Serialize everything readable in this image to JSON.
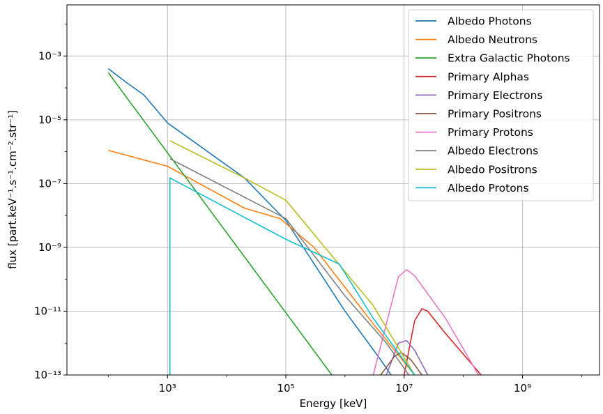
{
  "chart_data": {
    "type": "line",
    "xlabel": "Energy [keV]",
    "ylabel": "flux [part.keV⁻¹.s⁻¹.cm⁻².str⁻¹]",
    "xscale": "log",
    "yscale": "log",
    "xlim": [
      20,
      20000000000.0
    ],
    "ylim": [
      1e-13,
      0.04
    ],
    "grid": true,
    "legend_position": "upper right",
    "x_ticks": [
      {
        "value": 1000,
        "label": "10³"
      },
      {
        "value": 100000,
        "label": "10⁵"
      },
      {
        "value": 10000000,
        "label": "10⁷"
      },
      {
        "value": 1000000000,
        "label": "10⁹"
      }
    ],
    "y_ticks": [
      {
        "value": 0.001,
        "label": "10⁻³"
      },
      {
        "value": 1e-05,
        "label": "10⁻⁵"
      },
      {
        "value": 1e-07,
        "label": "10⁻⁷"
      },
      {
        "value": 1e-09,
        "label": "10⁻⁹"
      },
      {
        "value": 1e-11,
        "label": "10⁻¹¹"
      },
      {
        "value": 1e-13,
        "label": "10⁻¹³"
      }
    ],
    "series": [
      {
        "name": "Albedo Photons",
        "color": "#1f77b4",
        "points": [
          [
            100,
            0.0004
          ],
          [
            200,
            0.00015
          ],
          [
            400,
            6e-05
          ],
          [
            1000,
            8e-06
          ],
          [
            20000,
            1.5e-07
          ],
          [
            100000,
            7e-09
          ],
          [
            1000000,
            1e-11
          ],
          [
            4000000,
            3e-13
          ],
          [
            6000000,
            1e-13
          ]
        ]
      },
      {
        "name": "Albedo Neutrons",
        "color": "#ff7f0e",
        "points": [
          [
            100,
            1.1e-06
          ],
          [
            1000,
            3.5e-07
          ],
          [
            20000,
            1.7e-08
          ],
          [
            80000,
            8e-09
          ],
          [
            300000,
            1e-09
          ],
          [
            3000000,
            4e-12
          ],
          [
            15000000,
            1e-13
          ]
        ]
      },
      {
        "name": "Extra Galactic Photons",
        "color": "#2ca02c",
        "points": [
          [
            100,
            0.0003
          ],
          [
            600000,
            1e-13
          ]
        ]
      },
      {
        "name": "Primary Alphas",
        "color": "#d62728",
        "points": [
          [
            10000000,
            1e-13
          ],
          [
            15000000,
            5e-12
          ],
          [
            20000000,
            1.2e-11
          ],
          [
            25000000,
            1e-11
          ],
          [
            50000000,
            2e-12
          ],
          [
            200000000,
            1e-13
          ]
        ]
      },
      {
        "name": "Primary Electrons",
        "color": "#9467bd",
        "points": [
          [
            5000000,
            1e-13
          ],
          [
            8000000,
            1e-12
          ],
          [
            11000000,
            1.2e-12
          ],
          [
            15000000,
            6e-13
          ],
          [
            25000000,
            1e-13
          ]
        ]
      },
      {
        "name": "Primary Positrons",
        "color": "#8c564b",
        "points": [
          [
            4000000,
            1e-13
          ],
          [
            7000000,
            4e-13
          ],
          [
            9000000,
            5e-13
          ],
          [
            13000000,
            3e-13
          ],
          [
            20000000,
            1e-13
          ]
        ]
      },
      {
        "name": "Primary Protons",
        "color": "#e377c2",
        "points": [
          [
            3000000,
            1e-13
          ],
          [
            5000000,
            4e-12
          ],
          [
            8000000,
            1.2e-10
          ],
          [
            11000000,
            2e-10
          ],
          [
            15000000,
            1.3e-10
          ],
          [
            50000000,
            6e-12
          ],
          [
            180000000,
            1e-13
          ]
        ]
      },
      {
        "name": "Albedo Electrons",
        "color": "#7f7f7f",
        "points": [
          [
            1100,
            6e-07
          ],
          [
            100000,
            8e-09
          ],
          [
            1000000,
            3e-11
          ],
          [
            5000000,
            1e-12
          ],
          [
            12000000,
            1e-13
          ]
        ]
      },
      {
        "name": "Albedo Positrons",
        "color": "#bcbd22",
        "points": [
          [
            1100,
            2.2e-06
          ],
          [
            20000,
            1.5e-07
          ],
          [
            100000,
            3e-08
          ],
          [
            3000000,
            1.5e-11
          ],
          [
            15000000,
            1e-13
          ]
        ]
      },
      {
        "name": "Albedo Protons",
        "color": "#17becf",
        "points": [
          [
            1100,
            1e-13
          ],
          [
            1100,
            1.5e-07
          ],
          [
            100000,
            1.8e-09
          ],
          [
            800000,
            3e-10
          ],
          [
            3000000,
            6e-12
          ],
          [
            15000000,
            1e-13
          ]
        ]
      }
    ]
  }
}
